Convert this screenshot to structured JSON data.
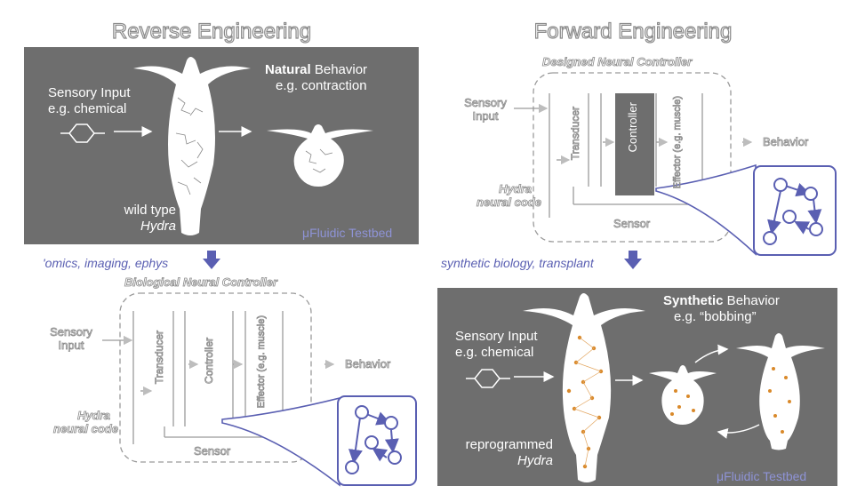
{
  "titles": {
    "reverse": "Reverse Engineering",
    "forward": "Forward Engineering"
  },
  "top_left_panel": {
    "input_line1": "Sensory Input",
    "input_line2": "e.g. chemical",
    "behavior_bold": "Natural",
    "behavior_rest": " Behavior",
    "behavior_example": "e.g. contraction",
    "organism_line1": "wild type",
    "organism_line2": "Hydra",
    "testbed": "μFluidic Testbed"
  },
  "arrows": {
    "left_label": "'omics, imaging, ephys",
    "right_label": "synthetic biology, transplant"
  },
  "top_right_diagram": {
    "title": "Designed Neural Controller",
    "input_line1": "Sensory",
    "input_line2": "Input",
    "transducer": "Transducer",
    "controller": "Controller",
    "effector": "Effector (e.g. muscle)",
    "behavior": "Behavior",
    "sensor": "Sensor",
    "code_line1": "Hydra",
    "code_line2": "neural code"
  },
  "bottom_left_diagram": {
    "title": "Biological Neural Controller",
    "input_line1": "Sensory",
    "input_line2": "Input",
    "transducer": "Transducer",
    "controller": "Controller",
    "effector": "Effector (e.g. muscle)",
    "behavior": "Behavior",
    "sensor": "Sensor",
    "code_line1": "Hydra",
    "code_line2": "neural code"
  },
  "bottom_right_panel": {
    "input_line1": "Sensory Input",
    "input_line2": "e.g. chemical",
    "behavior_bold": "Synthetic",
    "behavior_rest": " Behavior",
    "behavior_example": "e.g. “bobbing”",
    "organism_line1": "reprogrammed",
    "organism_line2": "Hydra",
    "testbed": "μFluidic Testbed"
  },
  "colors": {
    "panel": "#6e6e6e",
    "accent": "#5a5fb2",
    "neuron_fill": "#d9892a",
    "hydra_body": "#ffffff"
  }
}
